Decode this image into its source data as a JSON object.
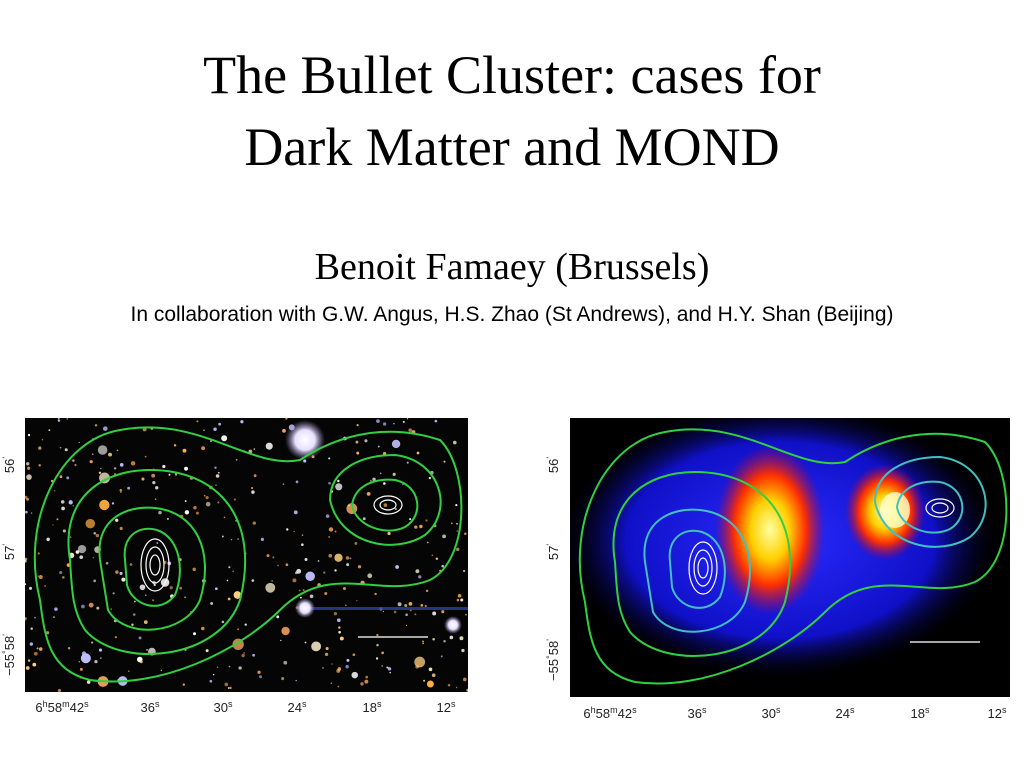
{
  "slide": {
    "title_lines": [
      "The Bullet Cluster: cases for",
      "Dark Matter and MOND"
    ],
    "author": "Benoit Famaey (Brussels)",
    "collaboration": "In collaboration with G.W. Angus, H.S. Zhao (St Andrews), and H.Y. Shan (Beijing)",
    "panels": [
      {
        "y_labels": [
          [
            "56",
            "'"
          ],
          [
            "57",
            "'"
          ],
          [
            "−55",
            "°",
            "58",
            "'"
          ]
        ],
        "x_labels": [
          [
            "6",
            "h",
            "58",
            "m",
            "42",
            "s"
          ],
          [
            "36",
            "s"
          ],
          [
            "30",
            "s"
          ],
          [
            "24",
            "s"
          ],
          [
            "18",
            "s"
          ],
          [
            "12",
            "s"
          ]
        ]
      },
      {
        "y_labels": [
          [
            "56",
            "'"
          ],
          [
            "57",
            "'"
          ],
          [
            "−55",
            "°",
            "58",
            "'"
          ]
        ],
        "x_labels": [
          [
            "6",
            "h",
            "58",
            "m",
            "42",
            "s"
          ],
          [
            "36",
            "s"
          ],
          [
            "30",
            "s"
          ],
          [
            "24",
            "s"
          ],
          [
            "18",
            "s"
          ],
          [
            "12",
            "s"
          ]
        ]
      }
    ]
  }
}
